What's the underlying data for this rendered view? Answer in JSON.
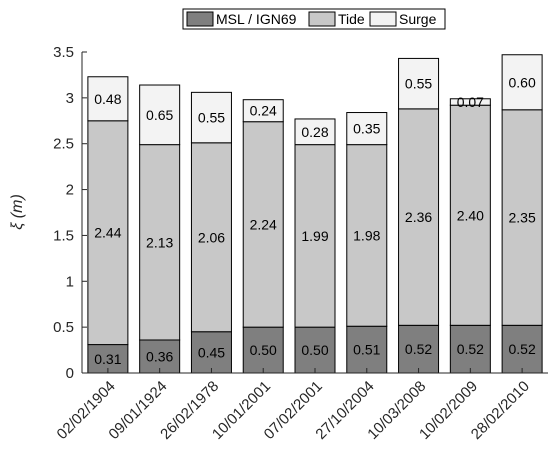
{
  "chart_data": {
    "type": "bar",
    "stacked": true,
    "categories": [
      "02/02/1904",
      "09/01/1924",
      "26/02/1978",
      "10/01/2001",
      "07/02/2001",
      "27/10/2004",
      "10/03/2008",
      "10/02/2009",
      "28/02/2010"
    ],
    "series": [
      {
        "name": "MSL / IGN69",
        "color": "#7f7f7f",
        "values": [
          0.31,
          0.36,
          0.45,
          0.5,
          0.5,
          0.51,
          0.52,
          0.52,
          0.52
        ]
      },
      {
        "name": "Tide",
        "color": "#c8c8c8",
        "values": [
          2.44,
          2.13,
          2.06,
          2.24,
          1.99,
          1.98,
          2.36,
          2.4,
          2.35
        ]
      },
      {
        "name": "Surge",
        "color": "#f3f3f3",
        "values": [
          0.48,
          0.65,
          0.55,
          0.24,
          0.28,
          0.35,
          0.55,
          0.07,
          0.6
        ]
      }
    ],
    "labels": {
      "MSL / IGN69": [
        "0.31",
        "0.36",
        "0.45",
        "0.50",
        "0.50",
        "0.51",
        "0.52",
        "0.52",
        "0.52"
      ],
      "Tide": [
        "2.44",
        "2.13",
        "2.06",
        "2.24",
        "1.99",
        "1.98",
        "2.36",
        "2.40",
        "2.35"
      ],
      "Surge": [
        "0.48",
        "0.65",
        "0.55",
        "0.24",
        "0.28",
        "0.35",
        "0.55",
        "0.07",
        "0.60"
      ]
    },
    "ylabel": "ξ (m)",
    "xlabel": "",
    "title": "",
    "ylim": [
      0,
      3.5
    ],
    "yticks": [
      "0",
      "0.5",
      "1",
      "1.5",
      "2",
      "2.5",
      "3",
      "3.5"
    ],
    "legend_position": "top-center",
    "grid": false
  }
}
